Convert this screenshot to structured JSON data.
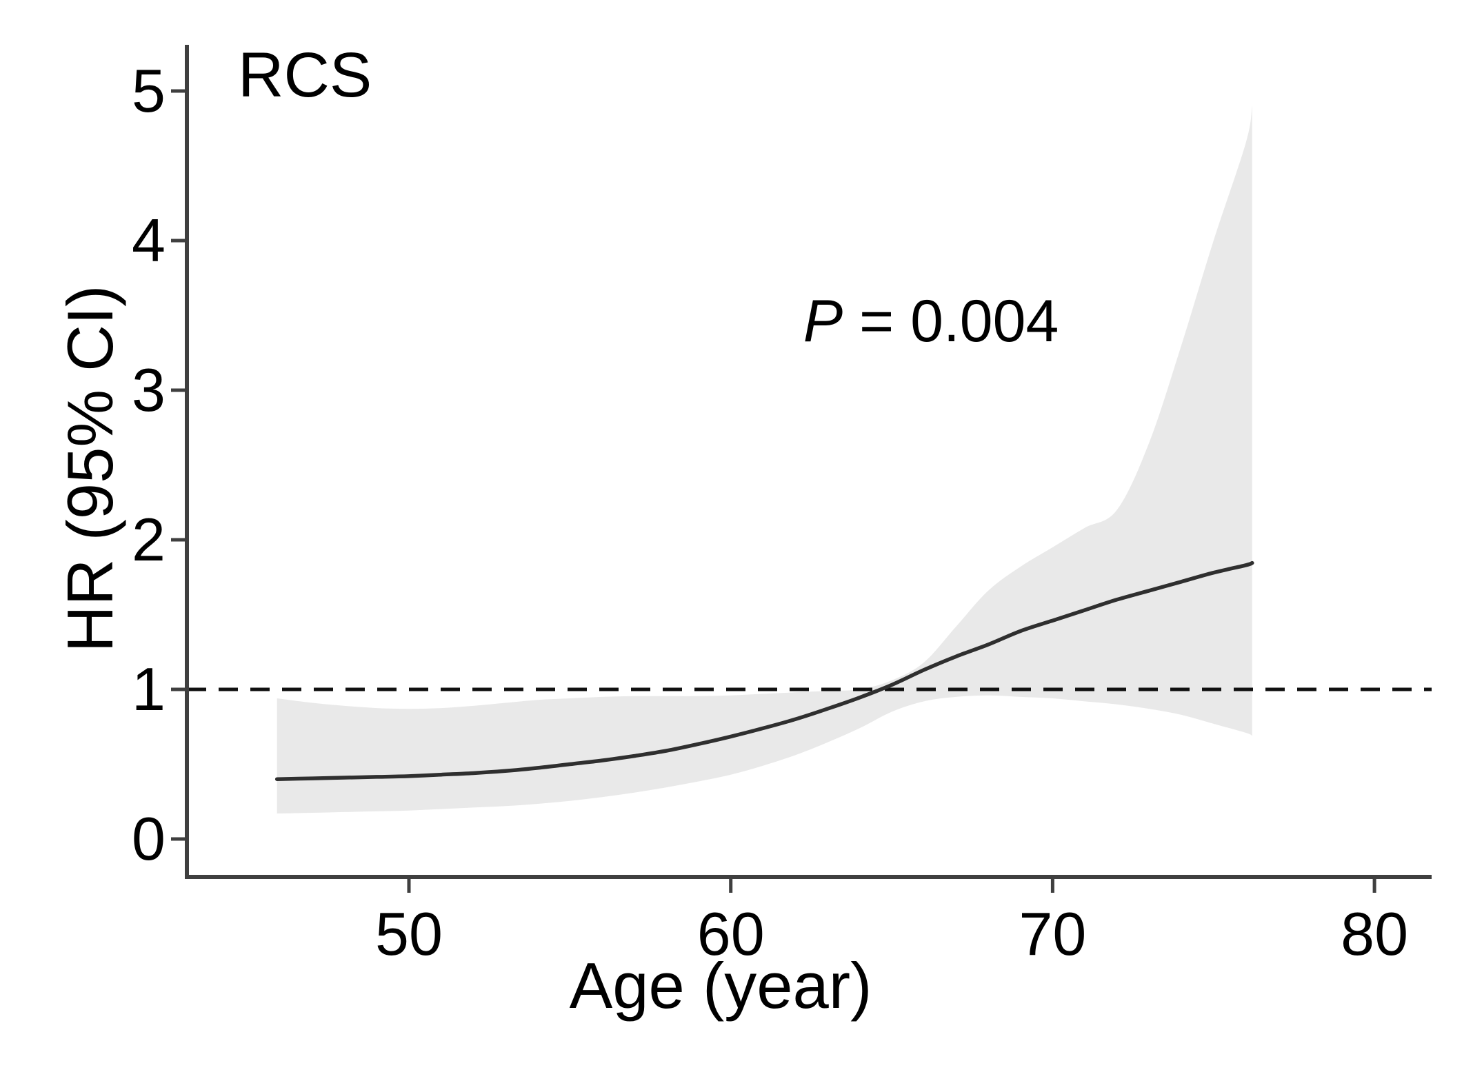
{
  "figure": {
    "corner_label": "RCS",
    "annotation": {
      "text": "P = 0.004",
      "prefix": "P",
      "rest": " = 0.004"
    },
    "x_axis_label": "Age (year)",
    "y_axis_label": "HR (95% CI)"
  },
  "chart_data": {
    "type": "line",
    "title": "RCS",
    "xlabel": "Age (year)",
    "ylabel": "HR (95% CI)",
    "annotation": "P = 0.004",
    "legend": "none",
    "grid": false,
    "xlim": [
      43.2,
      81.8
    ],
    "ylim": [
      -0.25,
      5.3
    ],
    "xticks": [
      50,
      60,
      70,
      80
    ],
    "yticks": [
      0,
      1,
      2,
      3,
      4,
      5
    ],
    "reference_line_y": 1,
    "reference_line_style": "dashed",
    "x": [
      45.9,
      47,
      48,
      49,
      50,
      51,
      52,
      53,
      54,
      55,
      56,
      57,
      58,
      59,
      60,
      61,
      62,
      63,
      64,
      65,
      66,
      67,
      68,
      69,
      70,
      71,
      72,
      73,
      74,
      75,
      76,
      76.2
    ],
    "series": [
      {
        "name": "HR",
        "values": [
          0.4,
          0.405,
          0.41,
          0.415,
          0.42,
          0.43,
          0.44,
          0.455,
          0.475,
          0.5,
          0.525,
          0.555,
          0.59,
          0.635,
          0.685,
          0.74,
          0.8,
          0.87,
          0.945,
          1.03,
          1.13,
          1.22,
          1.3,
          1.39,
          1.46,
          1.53,
          1.6,
          1.66,
          1.72,
          1.78,
          1.83,
          1.845
        ]
      },
      {
        "name": "CI_lower",
        "values": [
          0.17,
          0.175,
          0.18,
          0.185,
          0.19,
          0.2,
          0.21,
          0.22,
          0.235,
          0.255,
          0.28,
          0.31,
          0.345,
          0.385,
          0.43,
          0.49,
          0.56,
          0.645,
          0.74,
          0.85,
          0.92,
          0.95,
          0.96,
          0.95,
          0.94,
          0.92,
          0.9,
          0.87,
          0.83,
          0.77,
          0.71,
          0.69
        ]
      },
      {
        "name": "CI_upper",
        "values": [
          0.94,
          0.91,
          0.89,
          0.875,
          0.87,
          0.875,
          0.89,
          0.91,
          0.93,
          0.94,
          0.95,
          0.955,
          0.955,
          0.955,
          0.96,
          0.97,
          0.98,
          0.99,
          1.0,
          1.06,
          1.18,
          1.42,
          1.66,
          1.82,
          1.95,
          2.08,
          2.2,
          2.65,
          3.3,
          4.0,
          4.65,
          4.9
        ]
      }
    ],
    "colors": {
      "band": "#e9e9e9",
      "curve": "#2f2f2f",
      "axis": "#3f3f3f",
      "reference_line": "#101010",
      "text": "#000000",
      "background": "#ffffff"
    }
  }
}
